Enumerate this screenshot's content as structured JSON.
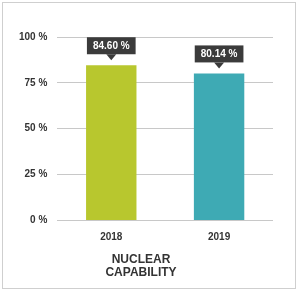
{
  "chart_data": {
    "type": "bar",
    "title": "NUCLEAR CAPABILITY",
    "categories": [
      "2018",
      "2019"
    ],
    "values": [
      84.6,
      80.14
    ],
    "value_labels": [
      "84.60 %",
      "80.14 %"
    ],
    "colors": [
      "#b8c72e",
      "#3eaab4"
    ],
    "ylim": [
      0,
      100
    ],
    "yticks": [
      {
        "value": 0,
        "label": "0 %"
      },
      {
        "value": 25,
        "label": "25 %"
      },
      {
        "value": 50,
        "label": "50 %"
      },
      {
        "value": 75,
        "label": "75 %"
      },
      {
        "value": 100,
        "label": "100 %"
      }
    ],
    "grid": true,
    "data_labels": true
  }
}
